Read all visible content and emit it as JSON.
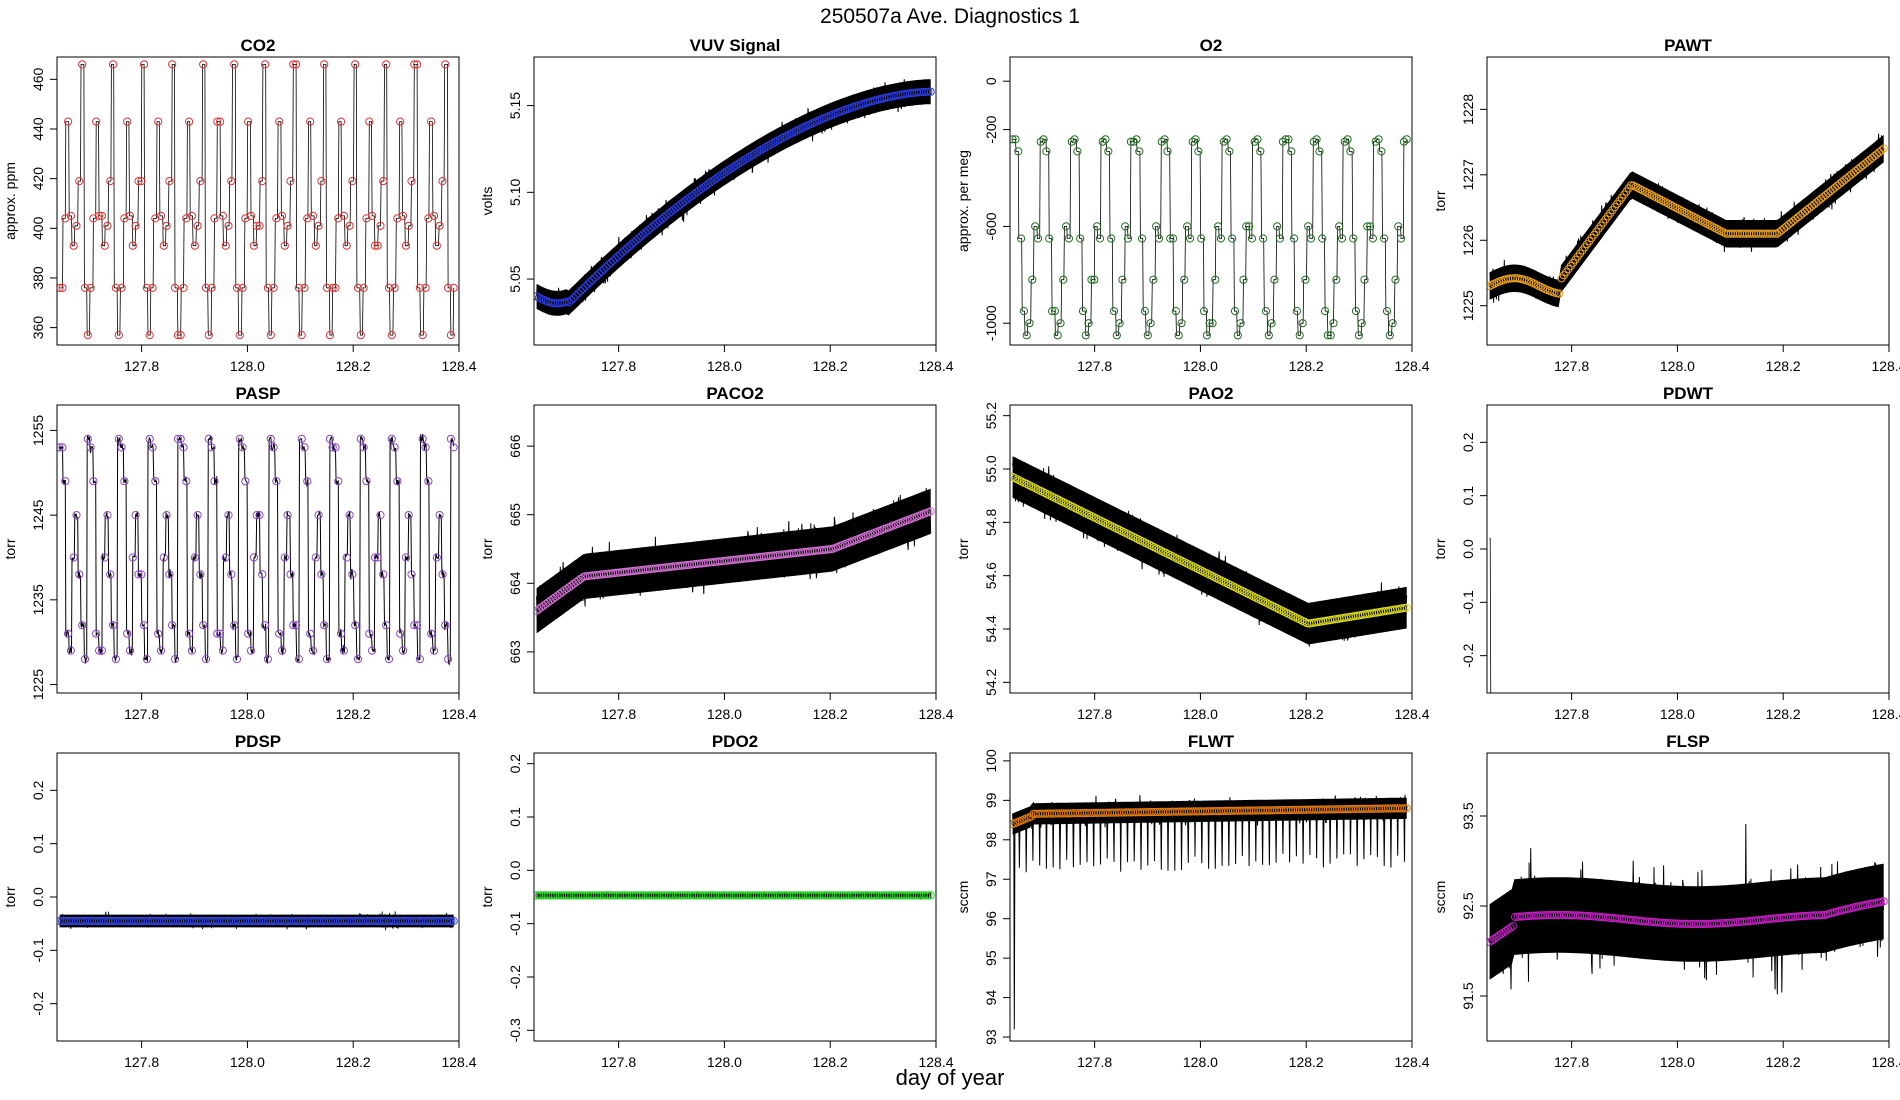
{
  "figure": {
    "title": "250507a   Ave. Diagnostics 1",
    "xlabel": "day of year"
  },
  "chart_data": [
    {
      "type": "line",
      "title": "CO2",
      "ylabel": "approx. ppm",
      "xlim": [
        127.64,
        128.4
      ],
      "ylim": [
        353,
        469
      ],
      "xticks": [
        127.8,
        128.0,
        128.2,
        128.4
      ],
      "yticks": [
        360,
        380,
        400,
        420,
        440,
        460
      ],
      "marker_color": "#e03030",
      "pattern": "co2",
      "noise": 0,
      "start_y": 376,
      "end_y": 357
    },
    {
      "type": "line",
      "title": "VUV Signal",
      "ylabel": "volts",
      "xlim": [
        127.64,
        128.4
      ],
      "ylim": [
        5.012,
        5.178
      ],
      "xticks": [
        127.8,
        128.0,
        128.2,
        128.4
      ],
      "yticks": [
        5.05,
        5.1,
        5.15
      ],
      "marker_color": "#2a3bd9",
      "pattern": "vuv",
      "noise": 0.012,
      "start_y": 5.04,
      "end_y": 5.158
    },
    {
      "type": "line",
      "title": "O2",
      "ylabel": "approx. per meg",
      "xlim": [
        127.64,
        128.4
      ],
      "ylim": [
        -1090,
        100
      ],
      "xticks": [
        127.8,
        128.0,
        128.2,
        128.4
      ],
      "yticks": [
        -1000,
        -600,
        -200,
        0
      ],
      "marker_color": "#1f6f1f",
      "pattern": "o2",
      "noise": 0,
      "start_y": -240,
      "end_y": -300
    },
    {
      "type": "line",
      "title": "PAWT",
      "ylabel": "torr",
      "xlim": [
        127.64,
        128.4
      ],
      "ylim": [
        1224.4,
        1228.8
      ],
      "xticks": [
        127.8,
        128.0,
        128.2,
        128.4
      ],
      "yticks": [
        1225,
        1226,
        1227,
        1228
      ],
      "marker_color": "#e8a020",
      "pattern": "pawt",
      "noise": 0.35,
      "start_y": 1225.3,
      "end_y": 1227.4
    },
    {
      "type": "line",
      "title": "PASP",
      "ylabel": "torr",
      "xlim": [
        127.64,
        128.4
      ],
      "ylim": [
        1224,
        1258
      ],
      "xticks": [
        127.8,
        128.0,
        128.2,
        128.4
      ],
      "yticks": [
        1225,
        1235,
        1245,
        1255
      ],
      "marker_color": "#8844cc",
      "pattern": "pasp",
      "noise": 0.8,
      "start_y": 1253,
      "end_y": 1247
    },
    {
      "type": "line",
      "title": "PACO2",
      "ylabel": "torr",
      "xlim": [
        127.64,
        128.4
      ],
      "ylim": [
        662.4,
        666.6
      ],
      "xticks": [
        127.8,
        128.0,
        128.2,
        128.4
      ],
      "yticks": [
        663,
        664,
        665,
        666
      ],
      "marker_color": "#d070d0",
      "pattern": "paco2",
      "noise": 0.55,
      "start_y": 663.6,
      "end_y": 665.0
    },
    {
      "type": "line",
      "title": "PAO2",
      "ylabel": "torr",
      "xlim": [
        127.64,
        128.4
      ],
      "ylim": [
        54.16,
        55.24
      ],
      "xticks": [
        127.8,
        128.0,
        128.2,
        128.4
      ],
      "yticks": [
        54.2,
        54.4,
        54.6,
        54.8,
        55.0,
        55.2
      ],
      "marker_color": "#d8d820",
      "pattern": "pao2",
      "noise": 0.13,
      "start_y": 54.97,
      "end_y": 54.48
    },
    {
      "type": "line",
      "title": "PDWT",
      "ylabel": "torr",
      "xlim": [
        127.64,
        128.4
      ],
      "ylim": [
        -0.27,
        0.27
      ],
      "xticks": [
        127.8,
        128.0,
        128.2,
        128.4
      ],
      "yticks": [
        -0.2,
        -0.1,
        0.0,
        0.1,
        0.2
      ],
      "marker_color": "#2020d0",
      "pattern": "pdwt",
      "noise": 0,
      "start_y": 0.02,
      "end_y": -0.27
    },
    {
      "type": "line",
      "title": "PDSP",
      "ylabel": "torr",
      "xlim": [
        127.64,
        128.4
      ],
      "ylim": [
        -0.27,
        0.27
      ],
      "xticks": [
        127.8,
        128.0,
        128.2,
        128.4
      ],
      "yticks": [
        -0.2,
        -0.1,
        0.0,
        0.1,
        0.2
      ],
      "marker_color": "#3344dd",
      "pattern": "flat",
      "noise": 0.02,
      "start_y": -0.045,
      "end_y": -0.045
    },
    {
      "type": "line",
      "title": "PDO2",
      "ylabel": "torr",
      "xlim": [
        127.64,
        128.4
      ],
      "ylim": [
        -0.32,
        0.22
      ],
      "xticks": [
        127.8,
        128.0,
        128.2,
        128.4
      ],
      "yticks": [
        -0.3,
        -0.2,
        -0.1,
        0.0,
        0.1,
        0.2
      ],
      "marker_color": "#22cc22",
      "pattern": "flat",
      "noise": 0.007,
      "start_y": -0.047,
      "end_y": -0.047
    },
    {
      "type": "line",
      "title": "FLWT",
      "ylabel": "sccm",
      "xlim": [
        127.64,
        128.4
      ],
      "ylim": [
        92.9,
        100.2
      ],
      "xticks": [
        127.8,
        128.0,
        128.2,
        128.4
      ],
      "yticks": [
        93,
        94,
        95,
        96,
        97,
        98,
        99,
        100
      ],
      "marker_color": "#e07a10",
      "pattern": "flwt",
      "noise": 0.45,
      "start_y": 98.5,
      "end_y": 98.8
    },
    {
      "type": "line",
      "title": "FLSP",
      "ylabel": "sccm",
      "xlim": [
        127.64,
        128.4
      ],
      "ylim": [
        91.0,
        94.2
      ],
      "xticks": [
        127.8,
        128.0,
        128.2,
        128.4
      ],
      "yticks": [
        91.5,
        92.5,
        93.5
      ],
      "marker_color": "#c020c0",
      "pattern": "flsp",
      "noise": 0.7,
      "start_y": 92.1,
      "end_y": 92.5
    }
  ]
}
